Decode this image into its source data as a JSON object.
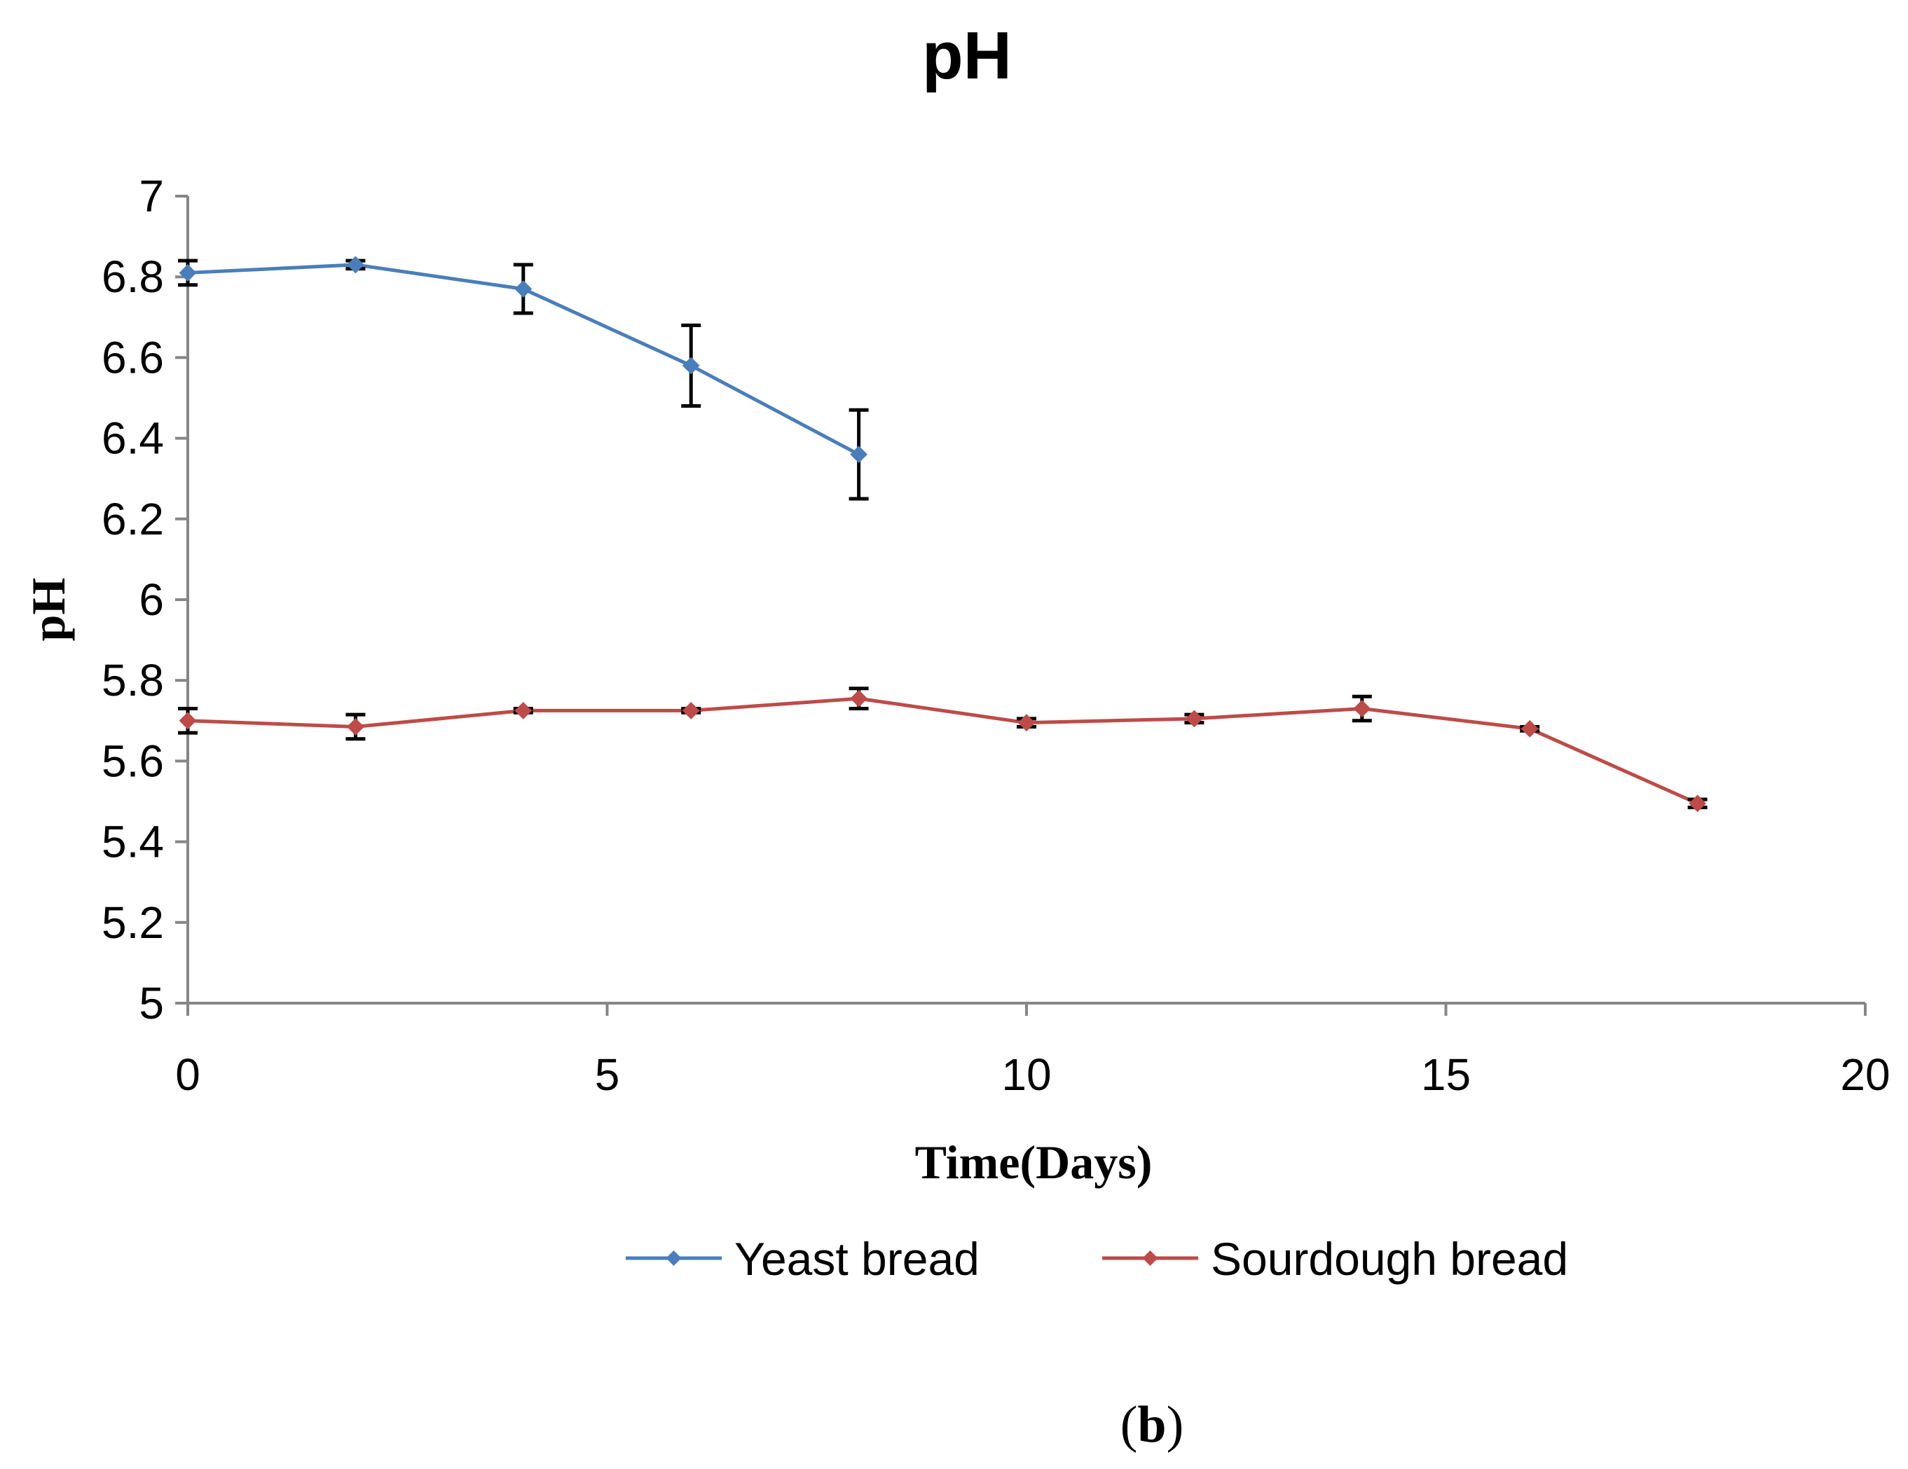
{
  "chart_data": {
    "type": "line",
    "title": "pH",
    "xlabel": "Time(Days)",
    "ylabel": "pH",
    "xlim": [
      0,
      20
    ],
    "ylim": [
      5,
      7
    ],
    "xticks": [
      0,
      5,
      10,
      15,
      20
    ],
    "yticks": [
      5,
      5.2,
      5.4,
      5.6,
      5.8,
      6,
      6.2,
      6.4,
      6.6,
      6.8,
      7
    ],
    "grid": false,
    "legend_position": "bottom",
    "series": [
      {
        "name": "Yeast bread",
        "color": "#4a7ebb",
        "marker": "diamond",
        "x": [
          0,
          2,
          4,
          6,
          8
        ],
        "y": [
          6.81,
          6.83,
          6.77,
          6.58,
          6.36
        ],
        "err": [
          0.03,
          0.01,
          0.06,
          0.1,
          0.11
        ]
      },
      {
        "name": "Sourdough bread",
        "color": "#be4b48",
        "marker": "diamond",
        "x": [
          0,
          2,
          4,
          6,
          8,
          10,
          12,
          14,
          16,
          18
        ],
        "y": [
          5.7,
          5.685,
          5.725,
          5.725,
          5.755,
          5.695,
          5.705,
          5.73,
          5.68,
          5.495
        ],
        "err": [
          0.03,
          0.03,
          0.005,
          0.005,
          0.025,
          0.01,
          0.01,
          0.03,
          0.005,
          0.01
        ]
      }
    ]
  },
  "caption": {
    "open": "(",
    "letter": "b",
    "close": ")"
  }
}
